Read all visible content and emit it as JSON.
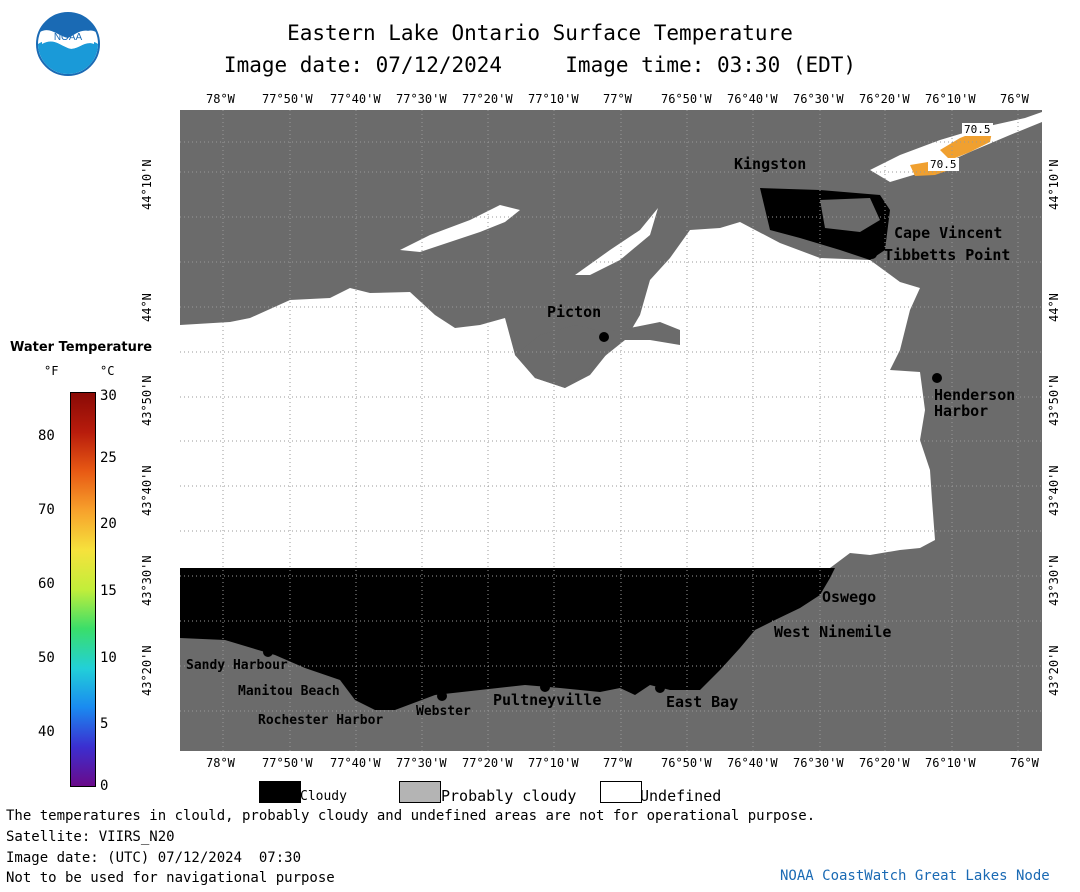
{
  "header": {
    "title": "Eastern Lake Ontario Surface Temperature",
    "subtitle": "Image date: 07/12/2024     Image time: 03:30 (EDT)"
  },
  "axes": {
    "lon_labels_top": [
      "78°W",
      "77°50'W",
      "77°40'W",
      "77°30'W",
      "77°20'W",
      "77°10'W",
      "77°W",
      "76°50'W",
      "76°40'W",
      "76°30'W",
      "76°20'W",
      "76°10'W",
      "76°W"
    ],
    "lon_labels_bottom": [
      "78°W",
      "77°50'W",
      "77°40'W",
      "77°30'W",
      "77°20'W",
      "77°10'W",
      "77°W",
      "76°50'W",
      "76°40'W",
      "76°30'W",
      "76°20'W",
      "76°10'W",
      "76°W"
    ],
    "lat_labels": [
      "44°10'N",
      "44°N",
      "43°50'N",
      "43°40'N",
      "43°30'N",
      "43°20'N"
    ]
  },
  "places": [
    "Kingston",
    "Cape Vincent",
    "Tibbetts Point",
    "Picton",
    "Henderson Harbor",
    "Oswego",
    "West Ninemile",
    "East Bay",
    "Pultneyville",
    "Webster",
    "Rochester Harbor",
    "Manitou Beach",
    "Sandy Harbour"
  ],
  "temp_labels": [
    "70.5",
    "70.5"
  ],
  "legend": {
    "title": "Water Temperature",
    "unit_f": "°F",
    "unit_c": "°C",
    "f_ticks": [
      "80",
      "70",
      "60",
      "50",
      "40"
    ],
    "c_ticks": [
      "30",
      "25",
      "20",
      "15",
      "10",
      "5",
      "0"
    ],
    "colors": [
      "#6a0a8a",
      "#3b2fd0",
      "#1a8af0",
      "#22d0d8",
      "#3ade6a",
      "#c2ee3a",
      "#f6e23c",
      "#f7a22c",
      "#e85a14",
      "#b81c0c",
      "#8a0a06"
    ]
  },
  "key": {
    "cloudy": "Cloudy",
    "probably_cloudy": "Probably cloudy",
    "undefined": "Undefined",
    "cloudy_color": "#000000",
    "probably_cloudy_color": "#b4b4b4",
    "undefined_color": "#ffffff"
  },
  "footer": {
    "line1": "The temperatures in clould, probably cloudy and undefined areas are not for operational purpose.",
    "line2": "Satellite: VIIRS_N20",
    "line3": "Image date: (UTC) 07/12/2024  07:30",
    "line4": "Not to be used for navigational purpose",
    "credit": "NOAA CoastWatch Great Lakes Node"
  },
  "colors": {
    "land": "#6b6b6b",
    "noaa_blue": "#1a6ab4"
  },
  "logo_text": "NOAA"
}
